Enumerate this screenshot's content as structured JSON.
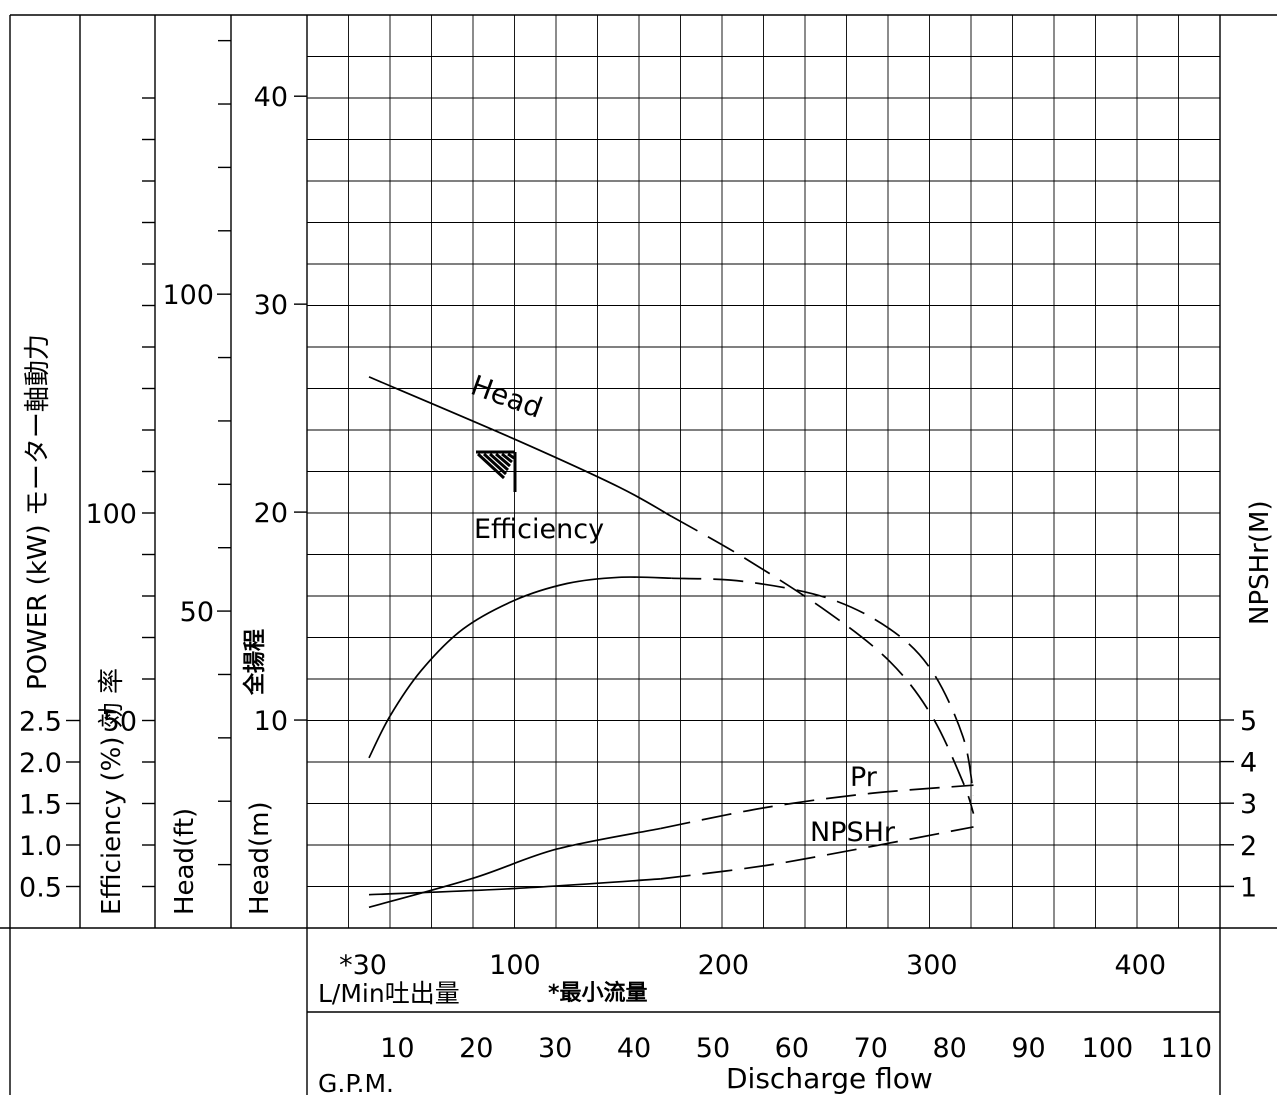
{
  "chart_data": {
    "type": "line",
    "x_unit_label": "L/Min吐出量",
    "x_ticks": [
      "*30",
      "100",
      "200",
      "300",
      "400"
    ],
    "x_tick_values": [
      30,
      100,
      200,
      300,
      400
    ],
    "min_flow_note": "*最小流量",
    "gpm_label": "G.P.M.",
    "gpm_ticks": [
      "10",
      "20",
      "30",
      "40",
      "50",
      "60",
      "70",
      "80",
      "90",
      "100",
      "110"
    ],
    "gpm_tick_values": [
      10,
      20,
      30,
      40,
      50,
      60,
      70,
      80,
      90,
      100,
      110
    ],
    "xlabel": "Discharge flow",
    "head_m": {
      "label": "Head(m)",
      "jp_label": "全揚程",
      "ticks": [
        "10",
        "20",
        "30",
        "40"
      ],
      "ylim": [
        0,
        42
      ]
    },
    "head_ft": {
      "label": "Head(ft)",
      "ticks": [
        "50",
        "100"
      ]
    },
    "efficiency": {
      "label": "Efficiency (%) 効 率",
      "ticks": [
        "50",
        "100"
      ],
      "ylim": [
        0,
        100
      ]
    },
    "power": {
      "label": "POWER (kW) モーター軸動力",
      "ticks": [
        "0.5",
        "1.0",
        "1.5",
        "2.0",
        "2.5"
      ],
      "ylim": [
        0,
        2.5
      ]
    },
    "npshr_axis": {
      "label": "NPSHr(M)",
      "ticks": [
        "1",
        "2",
        "3",
        "4",
        "5"
      ]
    },
    "series": [
      {
        "name": "Head",
        "solid": [
          [
            30,
            26.5
          ],
          [
            100,
            23.5
          ],
          [
            150,
            21.2
          ],
          [
            175,
            19.8
          ]
        ],
        "dashed": [
          [
            175,
            19.8
          ],
          [
            210,
            17.8
          ],
          [
            250,
            15.2
          ],
          [
            280,
            12.8
          ],
          [
            300,
            10.2
          ],
          [
            315,
            7
          ],
          [
            320,
            5.5
          ]
        ]
      },
      {
        "name": "Efficiency",
        "solid": [
          [
            30,
            41
          ],
          [
            40,
            51
          ],
          [
            55,
            62
          ],
          [
            75,
            72
          ],
          [
            100,
            79
          ],
          [
            125,
            83
          ],
          [
            150,
            84.5
          ],
          [
            175,
            84.3
          ]
        ],
        "dashed": [
          [
            175,
            84.3
          ],
          [
            210,
            83.5
          ],
          [
            250,
            79.5
          ],
          [
            280,
            72
          ],
          [
            300,
            62
          ],
          [
            315,
            46
          ],
          [
            320,
            32
          ]
        ]
      },
      {
        "name": "Pr",
        "solid": [
          [
            30,
            0.25
          ],
          [
            80,
            0.6
          ],
          [
            120,
            0.95
          ],
          [
            170,
            1.2
          ]
        ],
        "dashed": [
          [
            170,
            1.2
          ],
          [
            220,
            1.45
          ],
          [
            270,
            1.62
          ],
          [
            320,
            1.72
          ]
        ]
      },
      {
        "name": "NPSHr",
        "solid": [
          [
            30,
            -0.2
          ],
          [
            100,
            -0.05
          ],
          [
            170,
            0.18
          ]
        ],
        "dashed": [
          [
            170,
            0.18
          ],
          [
            220,
            0.5
          ],
          [
            270,
            0.95
          ],
          [
            320,
            1.43
          ]
        ]
      }
    ],
    "min_flow_value": 30,
    "grid": true
  }
}
